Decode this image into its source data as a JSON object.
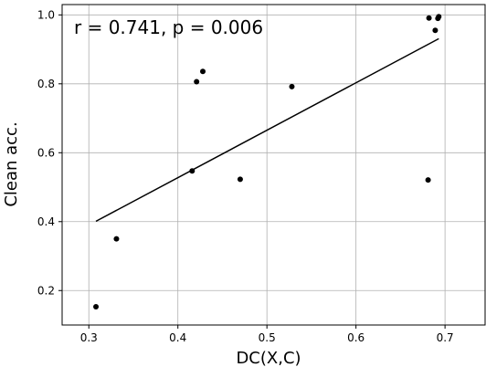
{
  "chart_data": {
    "type": "scatter",
    "title": "",
    "xlabel": "DC(X,C)",
    "ylabel": "Clean acc.",
    "xlim": [
      0.27,
      0.745
    ],
    "ylim": [
      0.1,
      1.03
    ],
    "x_ticks": [
      0.3,
      0.4,
      0.5,
      0.6,
      0.7
    ],
    "x_tick_labels": [
      "0.3",
      "0.4",
      "0.5",
      "0.6",
      "0.7"
    ],
    "y_ticks": [
      0.2,
      0.4,
      0.6,
      0.8,
      1.0
    ],
    "y_tick_labels": [
      "0.2",
      "0.4",
      "0.6",
      "0.8",
      "1.0"
    ],
    "grid": true,
    "annotation": "r = 0.741, p = 0.006",
    "points": [
      {
        "x": 0.308,
        "y": 0.153
      },
      {
        "x": 0.331,
        "y": 0.35
      },
      {
        "x": 0.416,
        "y": 0.547
      },
      {
        "x": 0.421,
        "y": 0.806
      },
      {
        "x": 0.428,
        "y": 0.836
      },
      {
        "x": 0.47,
        "y": 0.523
      },
      {
        "x": 0.528,
        "y": 0.792
      },
      {
        "x": 0.681,
        "y": 0.521
      },
      {
        "x": 0.682,
        "y": 0.991
      },
      {
        "x": 0.689,
        "y": 0.955
      },
      {
        "x": 0.692,
        "y": 0.99
      },
      {
        "x": 0.693,
        "y": 0.995
      }
    ],
    "fit_line": {
      "x": [
        0.308,
        0.693
      ],
      "y": [
        0.401,
        0.931
      ]
    }
  }
}
